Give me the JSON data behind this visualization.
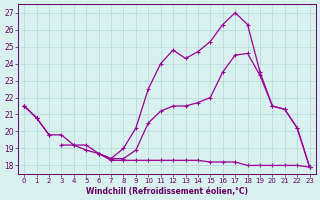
{
  "x": [
    0,
    1,
    2,
    3,
    4,
    5,
    6,
    7,
    8,
    9,
    10,
    11,
    12,
    13,
    14,
    15,
    16,
    17,
    18,
    19,
    20,
    21,
    22,
    23
  ],
  "line_top": [
    21.5,
    20.8,
    19.8,
    19.8,
    19.2,
    19.2,
    18.7,
    18.4,
    19.0,
    20.2,
    22.5,
    24.0,
    24.8,
    24.3,
    24.7,
    25.3,
    26.3,
    27.0,
    26.3,
    23.5,
    21.5,
    21.3,
    20.2,
    17.9
  ],
  "line_mid": [
    21.5,
    20.8,
    19.8,
    null,
    null,
    null,
    18.7,
    18.4,
    18.4,
    18.9,
    20.5,
    21.2,
    21.5,
    21.5,
    21.7,
    22.0,
    23.5,
    24.5,
    24.6,
    23.3,
    21.5,
    21.3,
    20.2,
    17.9
  ],
  "line_bot": [
    21.5,
    20.8,
    null,
    19.2,
    19.2,
    18.9,
    18.7,
    18.3,
    18.3,
    18.3,
    18.3,
    18.3,
    18.3,
    18.3,
    18.3,
    18.2,
    18.2,
    18.2,
    18.0,
    18.0,
    18.0,
    18.0,
    18.0,
    17.9
  ],
  "bg_color": "#d8f0ee",
  "line_color": "#990099",
  "grid_color": "#b0d8d4",
  "label_color": "#660066",
  "xlabel": "Windchill (Refroidissement éolien,°C)",
  "ylim": [
    17.5,
    27.5
  ],
  "xlim": [
    -0.5,
    23.5
  ],
  "yticks": [
    18,
    19,
    20,
    21,
    22,
    23,
    24,
    25,
    26,
    27
  ],
  "xticks": [
    0,
    1,
    2,
    3,
    4,
    5,
    6,
    7,
    8,
    9,
    10,
    11,
    12,
    13,
    14,
    15,
    16,
    17,
    18,
    19,
    20,
    21,
    22,
    23
  ]
}
